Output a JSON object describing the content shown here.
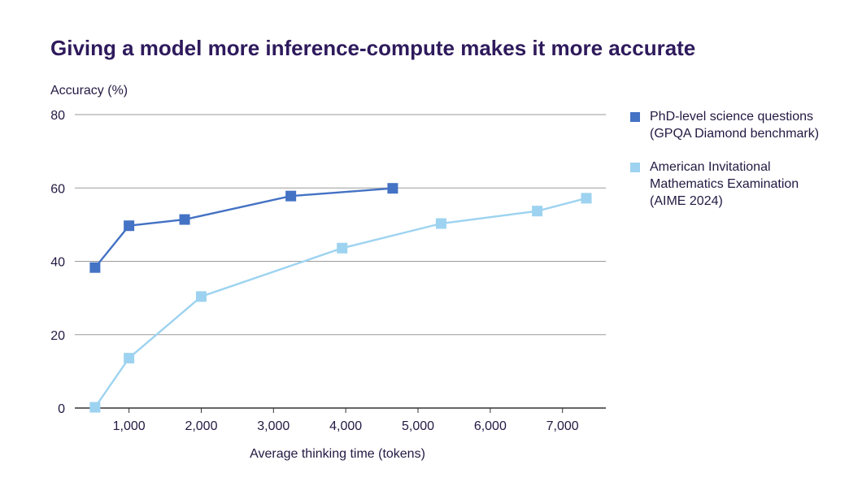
{
  "chart_data": {
    "type": "line",
    "title": "Giving a model more inference-compute makes it more accurate",
    "ylabel": "Accuracy (%)",
    "xlabel": "Average thinking time (tokens)",
    "ylim": [
      0,
      80
    ],
    "yticks": [
      0,
      20,
      40,
      60,
      80
    ],
    "xlim": [
      250,
      7600
    ],
    "xticks": [
      1000,
      2000,
      3000,
      4000,
      5000,
      6000,
      7000
    ],
    "xtick_labels": [
      "1,000",
      "2,000",
      "3,000",
      "4,000",
      "5,000",
      "6,000",
      "7,000"
    ],
    "grid": true,
    "legend_position": "right",
    "series": [
      {
        "name": "PhD-level science questions (GPQA Diamond benchmark)",
        "color": "#4472c4",
        "marker": "square",
        "points": [
          [
            530,
            38.3
          ],
          [
            1000,
            49.7
          ],
          [
            1770,
            51.4
          ],
          [
            3240,
            57.8
          ],
          [
            4650,
            59.9
          ]
        ]
      },
      {
        "name": "American Invitational Mathematics Examination (AIME 2024)",
        "color": "#9dd3f0",
        "marker": "square",
        "points": [
          [
            530,
            0.2
          ],
          [
            1000,
            13.6
          ],
          [
            2000,
            30.4
          ],
          [
            3950,
            43.6
          ],
          [
            5320,
            50.3
          ],
          [
            6650,
            53.7
          ],
          [
            7330,
            57.2
          ]
        ]
      }
    ]
  }
}
